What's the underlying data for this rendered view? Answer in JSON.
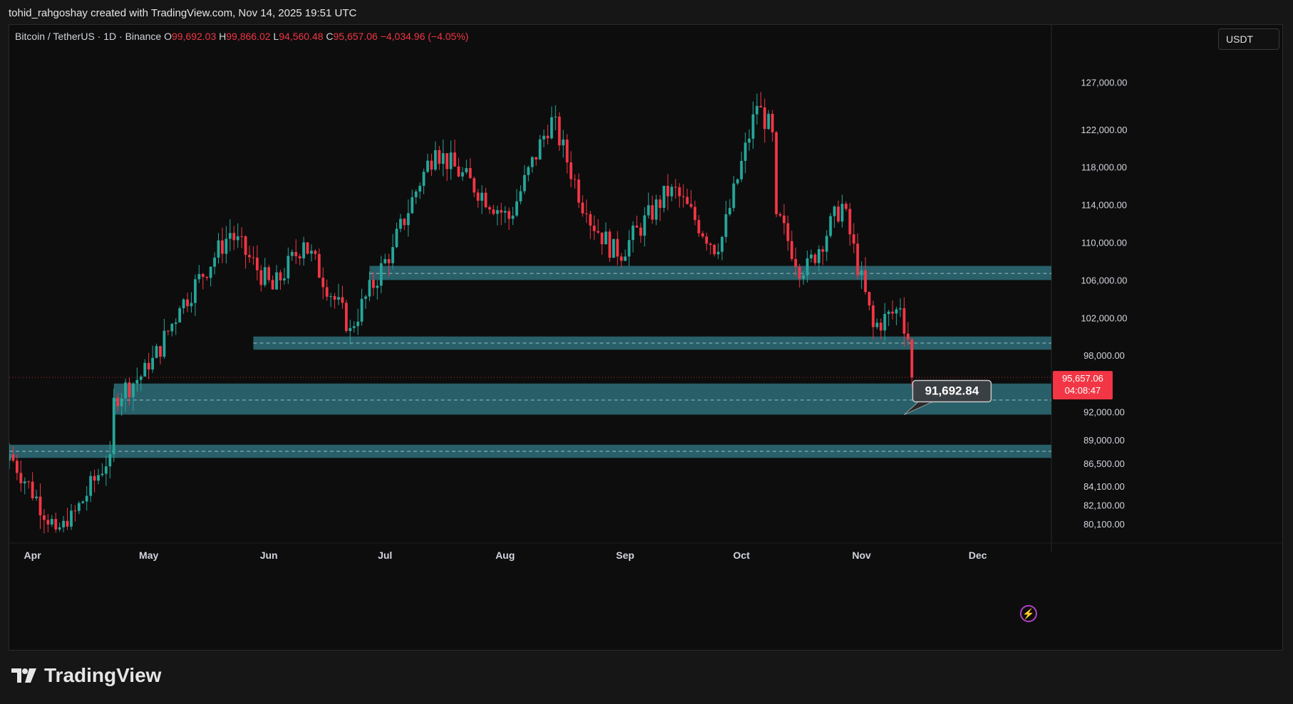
{
  "header": {
    "attribution": "tohid_rahgoshay created with TradingView.com, Nov 14, 2025 19:51 UTC"
  },
  "symbol_bar": {
    "title": "Bitcoin / TetherUS · 1D · Binance",
    "o_label": "O",
    "o_value": "99,692.03",
    "h_label": "H",
    "h_value": "99,866.02",
    "l_label": "L",
    "l_value": "94,560.48",
    "c_label": "C",
    "c_value": "95,657.06",
    "change": "−4,034.96 (−4.05%)"
  },
  "currency_button": "USDT",
  "brand": "TradingView",
  "colors": {
    "up": "#26a69a",
    "down": "#f23645",
    "zone": "#2e6f7a",
    "price_tag": "#f23645"
  },
  "chart_data": {
    "type": "candlestick",
    "symbol": "BTCUSDT",
    "interval": "1D",
    "x_range": [
      "2025-03-26",
      "2025-12-20"
    ],
    "ylim": [
      78500,
      132500
    ],
    "y_ticks": [
      {
        "value": 127000,
        "label": "127,000.00"
      },
      {
        "value": 122000,
        "label": "122,000.00"
      },
      {
        "value": 118000,
        "label": "118,000.00"
      },
      {
        "value": 114000,
        "label": "114,000.00"
      },
      {
        "value": 110000,
        "label": "110,000.00"
      },
      {
        "value": 106000,
        "label": "106,000.00"
      },
      {
        "value": 102000,
        "label": "102,000.00"
      },
      {
        "value": 98000,
        "label": "98,000.00"
      },
      {
        "value": 92000,
        "label": "92,000.00"
      },
      {
        "value": 89000,
        "label": "89,000.00"
      },
      {
        "value": 86500,
        "label": "86,500.00"
      },
      {
        "value": 84100,
        "label": "84,100.00"
      },
      {
        "value": 82100,
        "label": "82,100.00"
      },
      {
        "value": 80100,
        "label": "80,100.00"
      }
    ],
    "x_ticks": [
      {
        "date": "2025-04-01",
        "label": "Apr"
      },
      {
        "date": "2025-05-01",
        "label": "May"
      },
      {
        "date": "2025-06-01",
        "label": "Jun"
      },
      {
        "date": "2025-07-01",
        "label": "Jul"
      },
      {
        "date": "2025-08-01",
        "label": "Aug"
      },
      {
        "date": "2025-09-01",
        "label": "Sep"
      },
      {
        "date": "2025-10-01",
        "label": "Oct"
      },
      {
        "date": "2025-11-01",
        "label": "Nov"
      },
      {
        "date": "2025-12-01",
        "label": "Dec"
      }
    ],
    "last_price": {
      "value": 95657.06,
      "label": "95,657.06",
      "countdown": "04:08:47"
    },
    "zones": [
      {
        "from_date": "2025-06-27",
        "to_date": "2025-12-20",
        "low": 106000,
        "high": 107500,
        "mid": 106700
      },
      {
        "from_date": "2025-05-28",
        "to_date": "2025-12-20",
        "low": 98600,
        "high": 100000,
        "mid": 99300
      },
      {
        "from_date": "2025-04-22",
        "to_date": "2025-12-20",
        "low": 91700,
        "high": 95000,
        "mid": 93250
      },
      {
        "from_date": "2025-03-26",
        "to_date": "2025-12-20",
        "low": 87100,
        "high": 88500,
        "mid": 87800
      }
    ],
    "callout": {
      "date": "2025-11-12",
      "value": 91692.84,
      "label": "91,692.84"
    },
    "key_points": [
      {
        "date": "2025-03-26",
        "close": 87500
      },
      {
        "date": "2025-04-07",
        "close": 79500
      },
      {
        "date": "2025-04-10",
        "close": 79800
      },
      {
        "date": "2025-04-21",
        "close": 87500
      },
      {
        "date": "2025-04-22",
        "close": 93500
      },
      {
        "date": "2025-05-01",
        "close": 96500
      },
      {
        "date": "2025-05-09",
        "close": 103000
      },
      {
        "date": "2025-05-22",
        "close": 111000
      },
      {
        "date": "2025-06-02",
        "close": 105000
      },
      {
        "date": "2025-06-10",
        "close": 110000
      },
      {
        "date": "2025-06-22",
        "close": 100900
      },
      {
        "date": "2025-07-03",
        "close": 109500
      },
      {
        "date": "2025-07-11",
        "close": 117500
      },
      {
        "date": "2025-07-14",
        "close": 119800
      },
      {
        "date": "2025-08-02",
        "close": 112500
      },
      {
        "date": "2025-08-13",
        "close": 123300
      },
      {
        "date": "2025-08-22",
        "close": 113000
      },
      {
        "date": "2025-08-30",
        "close": 108500
      },
      {
        "date": "2025-09-13",
        "close": 115900
      },
      {
        "date": "2025-09-25",
        "close": 109000
      },
      {
        "date": "2025-10-05",
        "close": 124500
      },
      {
        "date": "2025-10-09",
        "close": 121700
      },
      {
        "date": "2025-10-10",
        "close": 113000
      },
      {
        "date": "2025-10-17",
        "close": 106500
      },
      {
        "date": "2025-10-27",
        "close": 114100
      },
      {
        "date": "2025-11-04",
        "close": 101000
      },
      {
        "date": "2025-11-11",
        "close": 103000
      },
      {
        "date": "2025-11-13",
        "close": 99692.03
      },
      {
        "date": "2025-11-14",
        "close": 95657.06
      }
    ],
    "last_candle": {
      "date": "2025-11-14",
      "open": 99692.03,
      "high": 99866.02,
      "low": 94560.48,
      "close": 95657.06
    }
  }
}
